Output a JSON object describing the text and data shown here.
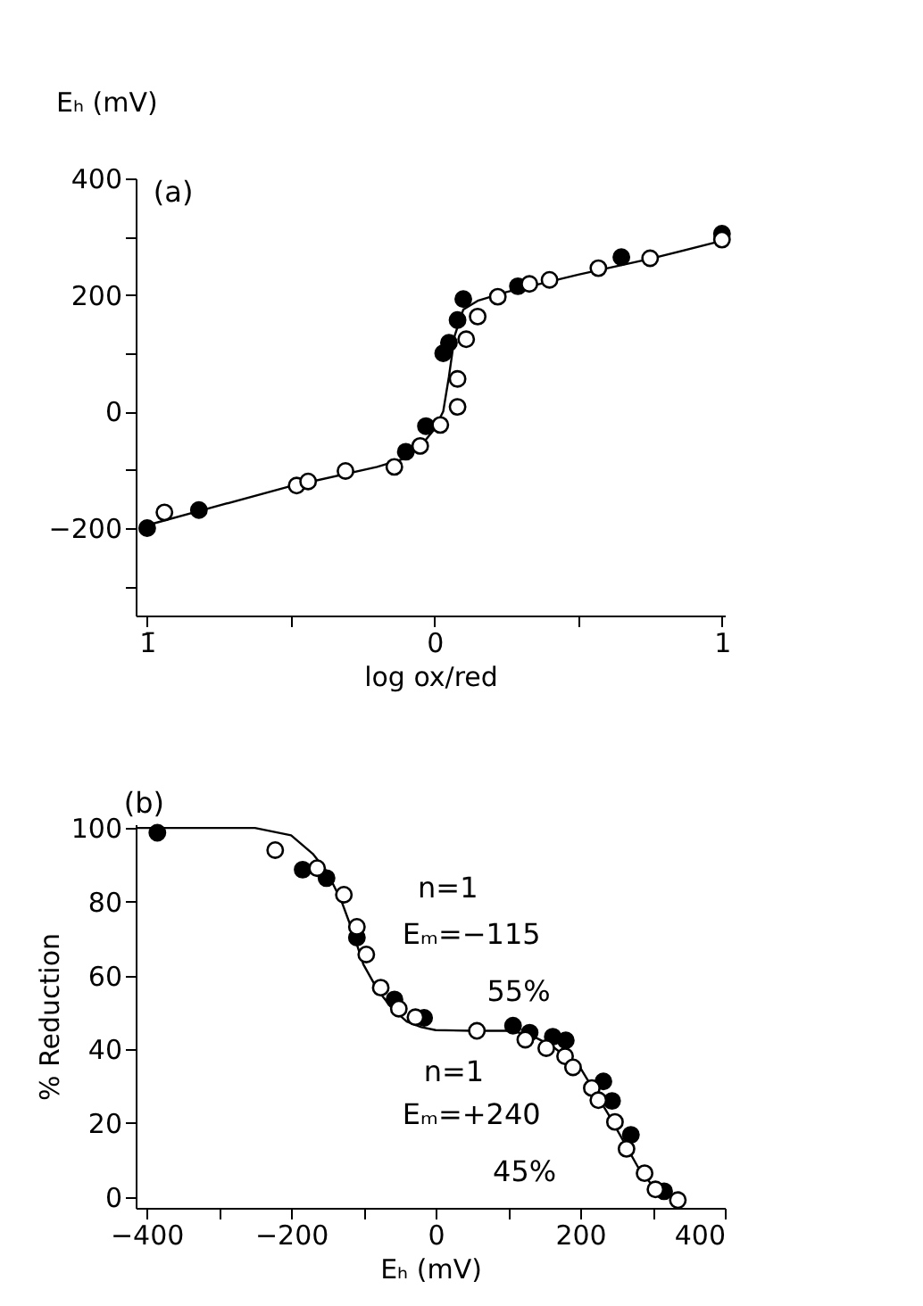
{
  "chart_data": [
    {
      "type": "scatter",
      "ylabel": "Eₕ (mV)",
      "xlabel": "log ox/red",
      "annotations": [
        "(a)"
      ],
      "xlim": [
        -1.04,
        1.01
      ],
      "xticks": [
        {
          "value": -1,
          "label": "1̄"
        },
        {
          "value": -0.5,
          "label": null
        },
        0,
        {
          "value": 0.5,
          "label": null
        },
        1
      ],
      "ylim": [
        -350,
        400
      ],
      "yticks": [
        {
          "value": -300,
          "label": null
        },
        -200,
        {
          "value": -100,
          "label": null
        },
        0,
        {
          "value": 100,
          "label": null
        },
        200,
        {
          "value": 300,
          "label": null
        },
        400
      ],
      "marker": "circle",
      "grid": false,
      "series": [
        {
          "type": "line",
          "color": "#000000",
          "marker": "none",
          "x": [
            -1.0,
            -0.8,
            -0.5,
            -0.2,
            -0.1,
            -0.05,
            0,
            0.03,
            0.05,
            0.07,
            0.1,
            0.15,
            0.25,
            0.5,
            0.75,
            1.0
          ],
          "values": [
            -195,
            -168,
            -128,
            -95,
            -80,
            -60,
            -30,
            0,
            60,
            130,
            175,
            190,
            205,
            235,
            262,
            293
          ]
        },
        {
          "color": "#000000",
          "x": [
            -1.0,
            -0.82,
            -0.1,
            -0.03,
            0.03,
            0.05,
            0.08,
            0.1,
            0.29,
            0.65,
            1.0
          ],
          "values": [
            -200,
            -169,
            -69,
            -25,
            100,
            118,
            157,
            193,
            215,
            265,
            305
          ]
        },
        {
          "color": "#ffffff",
          "x": [
            -0.94,
            -0.48,
            -0.44,
            -0.31,
            -0.14,
            -0.05,
            0.02,
            0.08,
            0.08,
            0.11,
            0.15,
            0.22,
            0.33,
            0.4,
            0.57,
            0.75,
            1.0
          ],
          "values": [
            -173,
            -127,
            -120,
            -102,
            -95,
            -59,
            -23,
            8,
            56,
            124,
            163,
            197,
            219,
            226,
            246,
            263,
            295
          ]
        }
      ]
    },
    {
      "type": "scatter",
      "ylabel": "% Reduction",
      "xlabel": "Eₕ (mV)",
      "annotations": [
        "(b)",
        "n=1",
        "Eₘ=−115",
        "55%",
        "n=1",
        "Eₘ=+240",
        "45%"
      ],
      "xlim": [
        -415,
        400
      ],
      "xticks": [
        -400,
        {
          "value": -300,
          "label": null
        },
        -200,
        {
          "value": -100,
          "label": null
        },
        0,
        {
          "value": 100,
          "label": null
        },
        200,
        {
          "value": 300,
          "label": null
        },
        400
      ],
      "ylim": [
        -3,
        101
      ],
      "yticks": [
        0,
        20,
        40,
        60,
        80,
        100
      ],
      "marker": "circle",
      "grid": false,
      "series": [
        {
          "type": "line",
          "color": "#000000",
          "marker": "none",
          "x": [
            -415,
            -250,
            -200,
            -170,
            -150,
            -130,
            -115,
            -100,
            -80,
            -60,
            -40,
            -20,
            0,
            50,
            100,
            130,
            160,
            200,
            240,
            280,
            300,
            320,
            335
          ],
          "values": [
            100,
            100,
            98,
            93,
            88,
            80,
            72,
            63,
            56,
            51,
            47.5,
            46,
            45.2,
            45,
            45,
            44,
            41,
            35,
            22,
            8,
            3,
            0.5,
            -1
          ]
        },
        {
          "color": "#000000",
          "x": [
            -385,
            -184,
            -151,
            -109,
            -57,
            -16,
            107,
            130,
            162,
            180,
            232,
            244,
            270,
            316
          ],
          "values": [
            98.7,
            88.7,
            86.4,
            70.3,
            53.5,
            48.5,
            46.4,
            44.5,
            43.4,
            42.4,
            31.3,
            26.0,
            16.8,
            1.5
          ]
        },
        {
          "color": "#ffffff",
          "x": [
            -222,
            -164,
            -127,
            -109,
            -96,
            -76,
            -51,
            -28,
            57,
            124,
            153,
            179,
            190,
            216,
            225,
            248,
            264,
            289,
            304,
            335
          ],
          "values": [
            94.0,
            89.1,
            81.9,
            73.2,
            65.7,
            56.7,
            51.0,
            48.7,
            45.0,
            42.6,
            40.3,
            38.1,
            35.1,
            29.5,
            26.2,
            20.3,
            13.0,
            6.4,
            2.0,
            -0.9
          ]
        }
      ]
    }
  ]
}
